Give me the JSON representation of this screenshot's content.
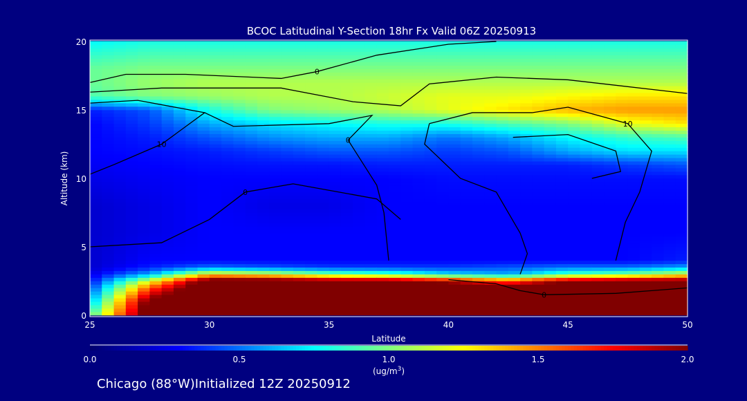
{
  "chart_data": {
    "type": "heatmap",
    "title": "BCOC Latitudinal Y-Section 18hr  Fx Valid 06Z 20250913",
    "xlabel": "Latitude",
    "ylabel": "Altitude (km)",
    "xlim": [
      25,
      50
    ],
    "ylim": [
      0,
      20
    ],
    "xticks": [
      "25",
      "30",
      "35",
      "40",
      "45",
      "50"
    ],
    "yticks": [
      "0",
      "5",
      "10",
      "15",
      "20"
    ],
    "x": [
      25,
      27.5,
      30,
      32.5,
      35,
      37.5,
      40,
      42.5,
      45,
      47.5,
      50
    ],
    "y": [
      0,
      1,
      2,
      2.5,
      3,
      3.5,
      4,
      6,
      8,
      10,
      11,
      12,
      13,
      14,
      15,
      16,
      17,
      18,
      19,
      20
    ],
    "values": [
      [
        0.9,
        2.2,
        2.4,
        2.4,
        2.4,
        2.4,
        2.4,
        2.4,
        2.4,
        2.4,
        2.4
      ],
      [
        0.6,
        2.1,
        2.4,
        2.4,
        2.4,
        2.4,
        2.4,
        2.4,
        2.4,
        2.4,
        2.4
      ],
      [
        0.4,
        1.6,
        2.3,
        2.3,
        2.3,
        2.3,
        2.2,
        2.1,
        2.3,
        2.3,
        2.3
      ],
      [
        0.3,
        1.2,
        2.2,
        2.2,
        2.1,
        2.1,
        1.9,
        1.6,
        2.0,
        2.1,
        2.1
      ],
      [
        0.25,
        0.6,
        1.3,
        1.2,
        1.0,
        0.9,
        0.7,
        0.6,
        0.9,
        1.0,
        1.2
      ],
      [
        0.2,
        0.35,
        0.5,
        0.45,
        0.4,
        0.4,
        0.4,
        0.45,
        0.5,
        0.5,
        0.6
      ],
      [
        0.2,
        0.3,
        0.3,
        0.3,
        0.3,
        0.3,
        0.3,
        0.3,
        0.3,
        0.3,
        0.35
      ],
      [
        0.2,
        0.25,
        0.3,
        0.3,
        0.3,
        0.3,
        0.3,
        0.3,
        0.3,
        0.3,
        0.3
      ],
      [
        0.2,
        0.25,
        0.3,
        0.25,
        0.25,
        0.3,
        0.3,
        0.3,
        0.3,
        0.3,
        0.3
      ],
      [
        0.25,
        0.28,
        0.3,
        0.3,
        0.3,
        0.3,
        0.32,
        0.32,
        0.32,
        0.32,
        0.32
      ],
      [
        0.28,
        0.3,
        0.32,
        0.33,
        0.33,
        0.35,
        0.35,
        0.35,
        0.35,
        0.4,
        0.45
      ],
      [
        0.3,
        0.32,
        0.35,
        0.4,
        0.45,
        0.45,
        0.4,
        0.45,
        0.6,
        0.7,
        0.7
      ],
      [
        0.3,
        0.35,
        0.45,
        0.55,
        0.6,
        0.6,
        0.5,
        0.6,
        0.75,
        0.85,
        0.9
      ],
      [
        0.3,
        0.4,
        0.6,
        0.7,
        0.75,
        0.8,
        0.8,
        0.9,
        1.0,
        1.2,
        1.3
      ],
      [
        0.35,
        0.45,
        0.8,
        1.0,
        1.05,
        1.1,
        1.2,
        1.3,
        1.4,
        1.45,
        1.45
      ],
      [
        0.9,
        1.0,
        1.05,
        1.1,
        1.1,
        1.15,
        1.2,
        1.2,
        1.25,
        1.3,
        1.3
      ],
      [
        0.95,
        1.05,
        1.1,
        1.1,
        1.1,
        1.1,
        1.1,
        1.1,
        1.1,
        1.1,
        1.1
      ],
      [
        0.95,
        1.0,
        1.0,
        1.0,
        1.0,
        1.0,
        1.0,
        1.0,
        1.0,
        1.0,
        1.0
      ],
      [
        0.85,
        0.9,
        0.9,
        0.9,
        0.9,
        0.9,
        0.9,
        0.9,
        0.9,
        0.9,
        0.9
      ],
      [
        0.75,
        0.8,
        0.8,
        0.8,
        0.8,
        0.8,
        0.8,
        0.8,
        0.8,
        0.8,
        0.8
      ]
    ],
    "contours": [
      {
        "label": "0",
        "points": [
          [
            25,
            17
          ],
          [
            26.5,
            17.6
          ],
          [
            29,
            17.6
          ],
          [
            33,
            17.3
          ],
          [
            34.5,
            17.8
          ],
          [
            37,
            19
          ],
          [
            40,
            19.8
          ],
          [
            42,
            20
          ]
        ]
      },
      {
        "label": "",
        "points": [
          [
            25,
            16.3
          ],
          [
            28,
            16.6
          ],
          [
            33,
            16.6
          ],
          [
            36,
            15.6
          ],
          [
            38,
            15.3
          ],
          [
            39.2,
            16.9
          ],
          [
            42,
            17.4
          ],
          [
            45,
            17.2
          ],
          [
            50,
            16.2
          ]
        ]
      },
      {
        "label": "10",
        "points": [
          [
            25,
            15.5
          ],
          [
            27,
            15.7
          ],
          [
            29.8,
            14.8
          ],
          [
            28,
            12.5
          ],
          [
            26,
            11
          ],
          [
            25,
            10.3
          ]
        ]
      },
      {
        "label": "0",
        "points": [
          [
            29.8,
            14.8
          ],
          [
            31,
            13.8
          ],
          [
            35,
            14
          ],
          [
            36.8,
            14.6
          ],
          [
            35.8,
            12.8
          ],
          [
            37,
            9.5
          ],
          [
            37.3,
            7.5
          ],
          [
            37.5,
            4
          ]
        ]
      },
      {
        "label": "0",
        "points": [
          [
            25,
            5
          ],
          [
            28,
            5.3
          ],
          [
            30,
            7
          ],
          [
            31.5,
            9
          ],
          [
            33.5,
            9.6
          ],
          [
            37,
            8.5
          ],
          [
            38,
            7
          ]
        ]
      },
      {
        "label": "10",
        "points": [
          [
            39.2,
            14
          ],
          [
            41,
            14.8
          ],
          [
            43.5,
            14.8
          ],
          [
            45,
            15.2
          ],
          [
            47.5,
            14
          ],
          [
            48.5,
            12
          ],
          [
            48,
            9
          ],
          [
            47.4,
            6.8
          ],
          [
            47,
            4
          ]
        ]
      },
      {
        "label": "",
        "points": [
          [
            39.2,
            14
          ],
          [
            39,
            12.5
          ],
          [
            40.5,
            10
          ],
          [
            42,
            9
          ],
          [
            43,
            6
          ],
          [
            43.3,
            4.5
          ],
          [
            43,
            3
          ]
        ]
      },
      {
        "label": "",
        "points": [
          [
            42.7,
            13
          ],
          [
            45,
            13.2
          ],
          [
            47,
            12
          ],
          [
            47.2,
            10.5
          ],
          [
            46,
            10
          ]
        ],
        "dashed": false
      },
      {
        "label": "0",
        "points": [
          [
            40,
            2.6
          ],
          [
            42,
            2.3
          ],
          [
            43,
            1.8
          ],
          [
            44,
            1.5
          ],
          [
            47,
            1.6
          ],
          [
            48.5,
            1.8
          ],
          [
            50,
            2.0
          ]
        ]
      }
    ],
    "colorbar": {
      "ticks": [
        "0.0",
        "0.5",
        "1.0",
        "1.5",
        "2.0"
      ],
      "range": [
        0,
        2
      ],
      "unit": "(ug/m",
      "unit_sup": "3",
      "unit_close": ")"
    },
    "footer": "Chicago (88°W)Initialized 12Z 20250912"
  }
}
